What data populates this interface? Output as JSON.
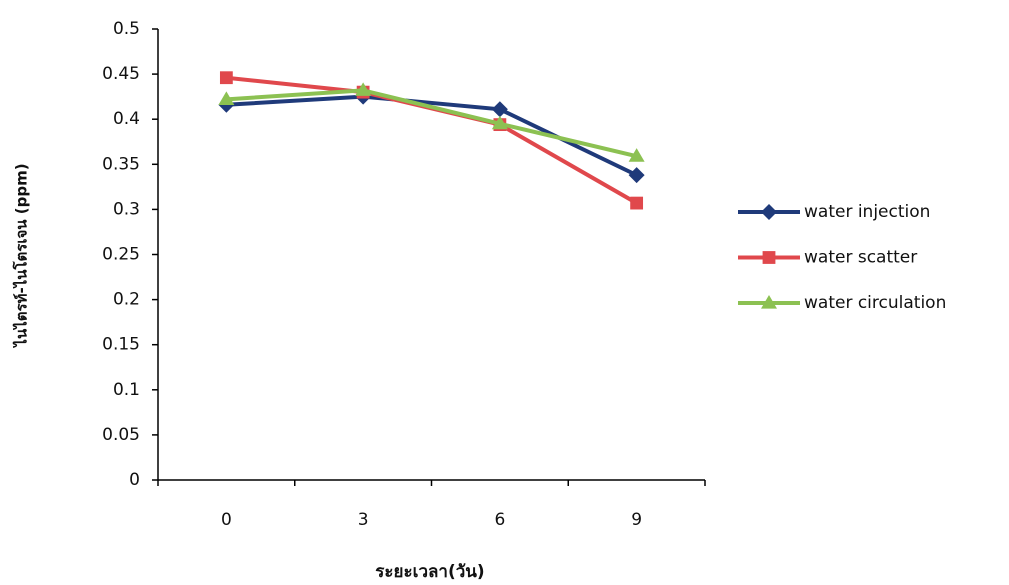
{
  "chart_data": {
    "type": "line",
    "x_label": "ระยะเวลา(วัน)",
    "y_label": "ไนไตรท์-ไนโตรเจน (ppm)",
    "categories": [
      "0",
      "3",
      "6",
      "9"
    ],
    "series": [
      {
        "name": "water injection",
        "color": "#1f3a7a",
        "marker": "diamond",
        "values": [
          0.416,
          0.425,
          0.411,
          0.338
        ]
      },
      {
        "name": "water scatter",
        "color": "#e0484c",
        "marker": "square",
        "values": [
          0.446,
          0.43,
          0.394,
          0.307
        ]
      },
      {
        "name": "water circulation",
        "color": "#8cc152",
        "marker": "triangle",
        "values": [
          0.422,
          0.432,
          0.395,
          0.359
        ]
      }
    ],
    "ylim": [
      0,
      0.5
    ],
    "yticks": [
      0,
      0.05,
      0.1,
      0.15,
      0.2,
      0.25,
      0.3,
      0.35,
      0.4,
      0.45,
      0.5
    ],
    "legend": "right"
  }
}
